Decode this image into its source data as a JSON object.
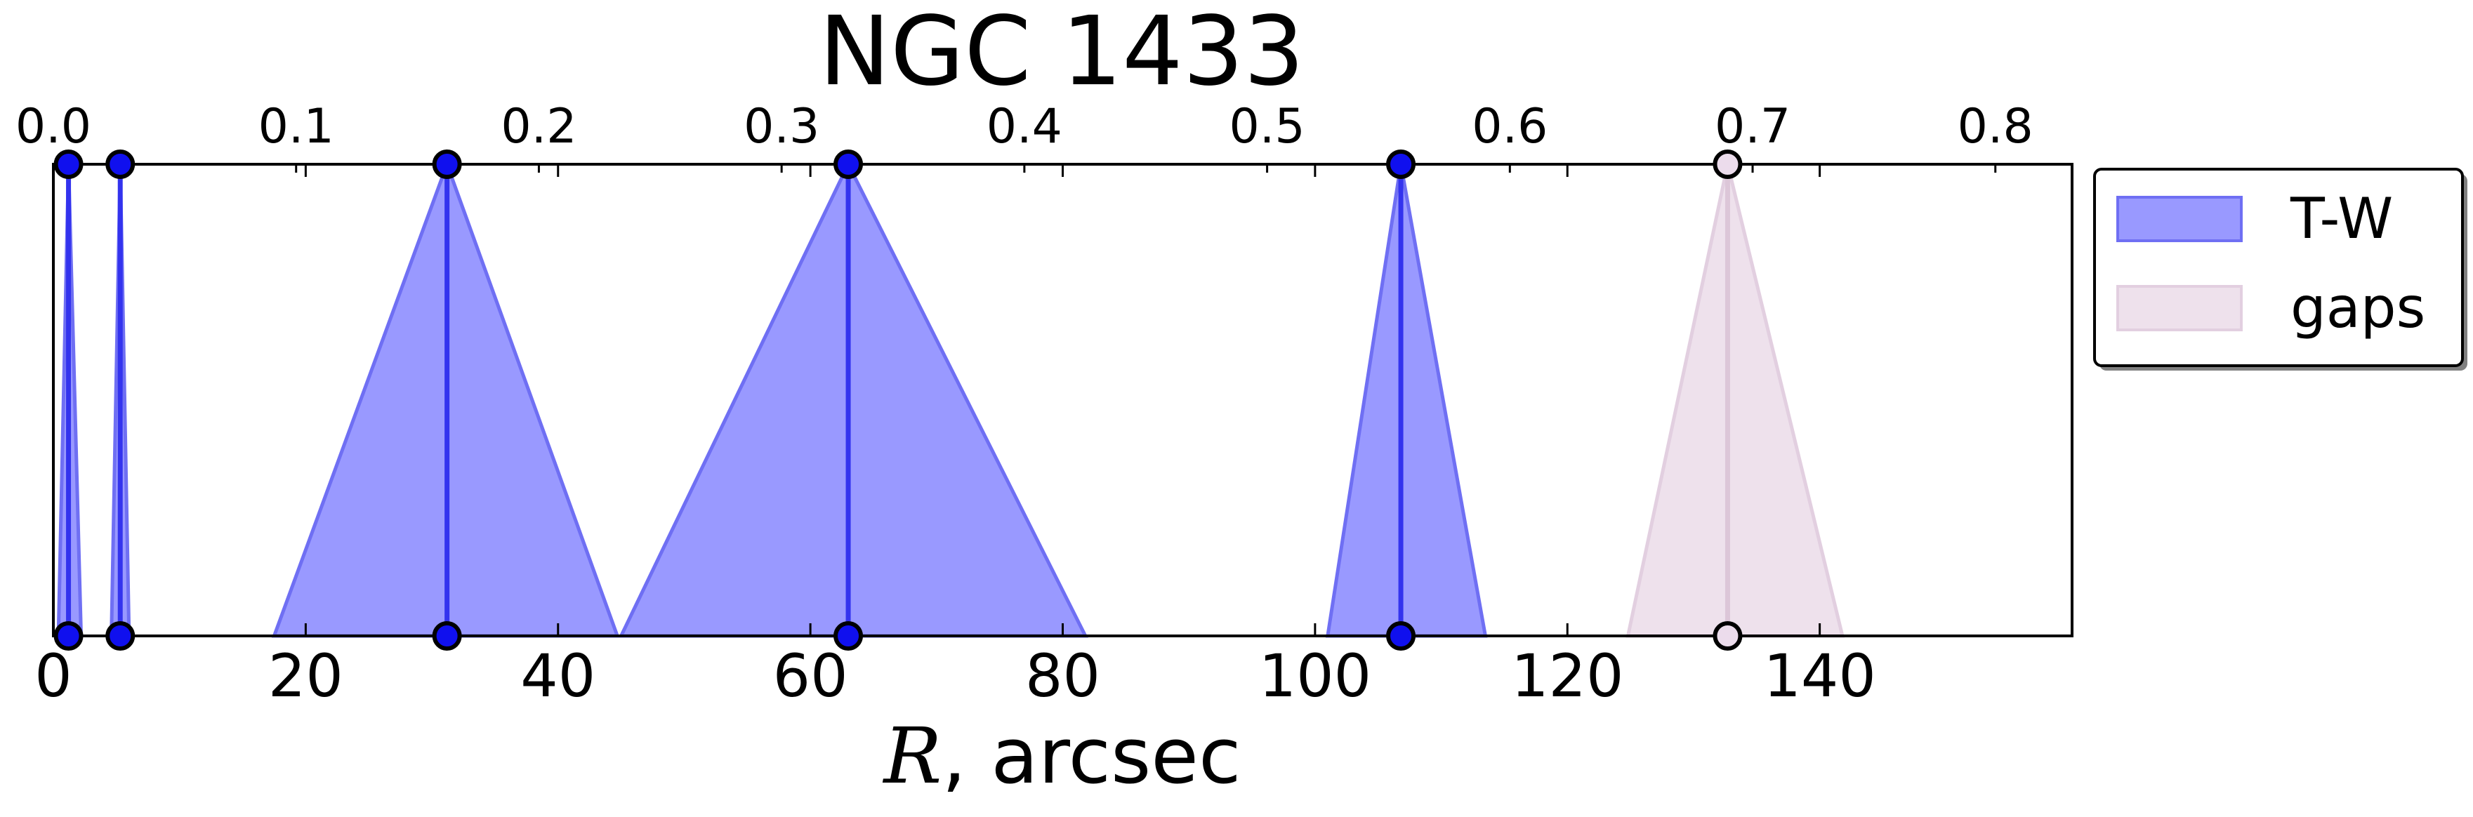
{
  "chart_data": {
    "type": "area",
    "title": "NGC 1433",
    "xlabel_var": "R",
    "xlabel_unit": ", arcsec",
    "xlim": [
      0,
      160
    ],
    "ylim": [
      0,
      1
    ],
    "xticks": [
      0,
      20,
      40,
      60,
      80,
      100,
      120,
      140
    ],
    "xticklabels": [
      "0",
      "20",
      "40",
      "60",
      "80",
      "100",
      "120",
      "140"
    ],
    "top_axis": {
      "xlim": [
        0,
        0.8316
      ],
      "ticks": [
        0.0,
        0.1,
        0.2,
        0.3,
        0.4,
        0.5,
        0.6,
        0.7,
        0.8
      ],
      "ticklabels": [
        "0.0",
        "0.1",
        "0.2",
        "0.3",
        "0.4",
        "0.5",
        "0.6",
        "0.7",
        "0.8"
      ]
    },
    "grid": false,
    "legend_position": "outside-right",
    "series": [
      {
        "name": "T-W",
        "fill": "#9999ff",
        "edge": "#6f6ff3",
        "center_line": "#3333ee",
        "marker_fill": "#1010ee",
        "peaks": [
          {
            "center": 1.2,
            "left": 0.4,
            "right": 2.2
          },
          {
            "center": 5.3,
            "left": 4.6,
            "right": 6.0
          },
          {
            "center": 31.2,
            "left": 17.5,
            "right": 44.7
          },
          {
            "center": 63.0,
            "left": 45.0,
            "right": 81.8
          },
          {
            "center": 106.8,
            "left": 101.0,
            "right": 113.5
          }
        ]
      },
      {
        "name": "gaps",
        "fill": "#eee1ec",
        "edge": "#e2cfe0",
        "center_line": "#dcc6d8",
        "marker_fill": "#ecdcec",
        "peaks": [
          {
            "center": 132.7,
            "left": 124.8,
            "right": 141.8
          }
        ]
      }
    ]
  }
}
